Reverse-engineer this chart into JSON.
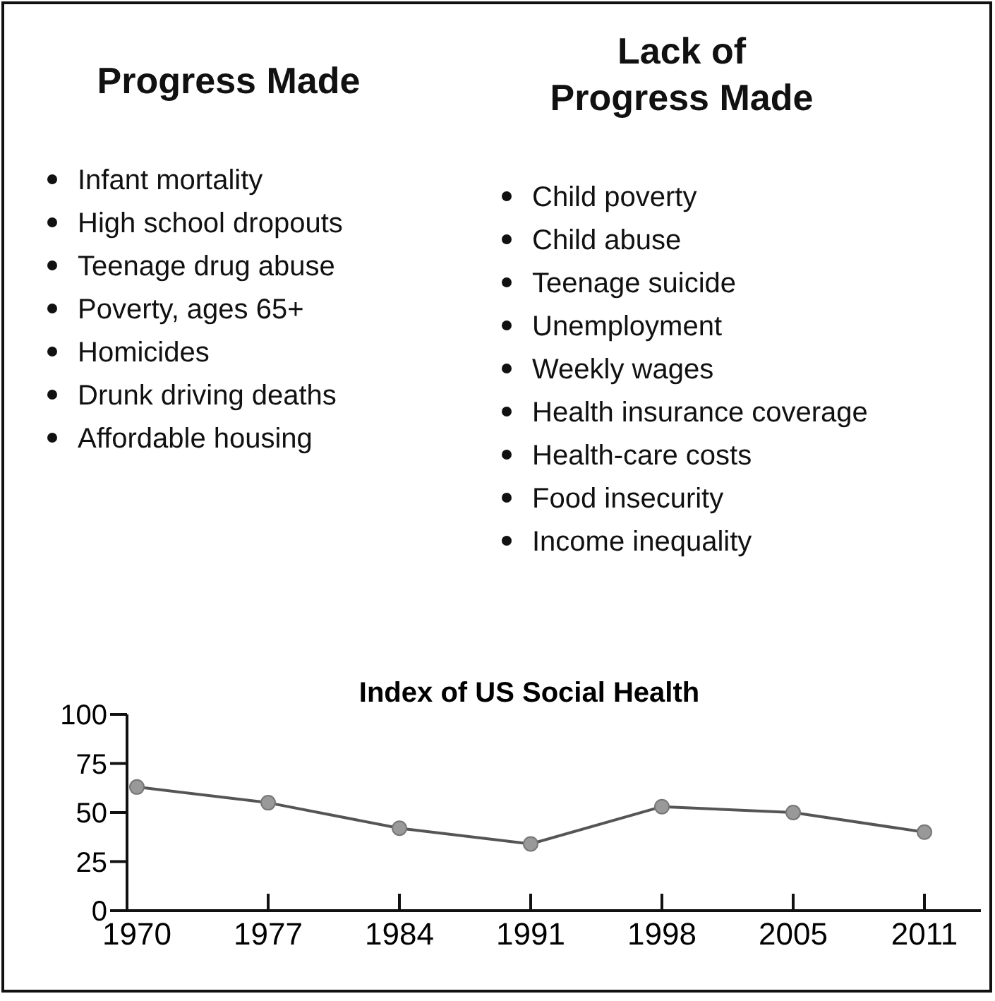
{
  "chart_data": [
    {
      "type": "other",
      "title": "Progress Made",
      "annotations": [
        "Infant mortality",
        "High school dropouts",
        "Teenage drug abuse",
        "Poverty, ages 65+",
        "Homicides",
        "Drunk driving deaths",
        "Affordable housing"
      ]
    },
    {
      "type": "other",
      "title": "Lack of Progress Made",
      "annotations": [
        "Child poverty",
        "Child abuse",
        "Teenage suicide",
        "Unemployment",
        "Weekly wages",
        "Health insurance coverage",
        "Health-care costs",
        "Food insecurity",
        "Income inequality"
      ]
    },
    {
      "type": "line",
      "title": "Index of US Social Health",
      "categories": [
        "1970",
        "1977",
        "1984",
        "1991",
        "1998",
        "2005",
        "2011"
      ],
      "series": [
        {
          "color": "#555555",
          "values": [
            63,
            55,
            42,
            34,
            53,
            50,
            40
          ]
        }
      ],
      "ylim": [
        0,
        100
      ],
      "yticks": [
        0,
        25,
        50,
        75,
        100
      ],
      "marker": "circle",
      "line_style": "solid"
    }
  ]
}
